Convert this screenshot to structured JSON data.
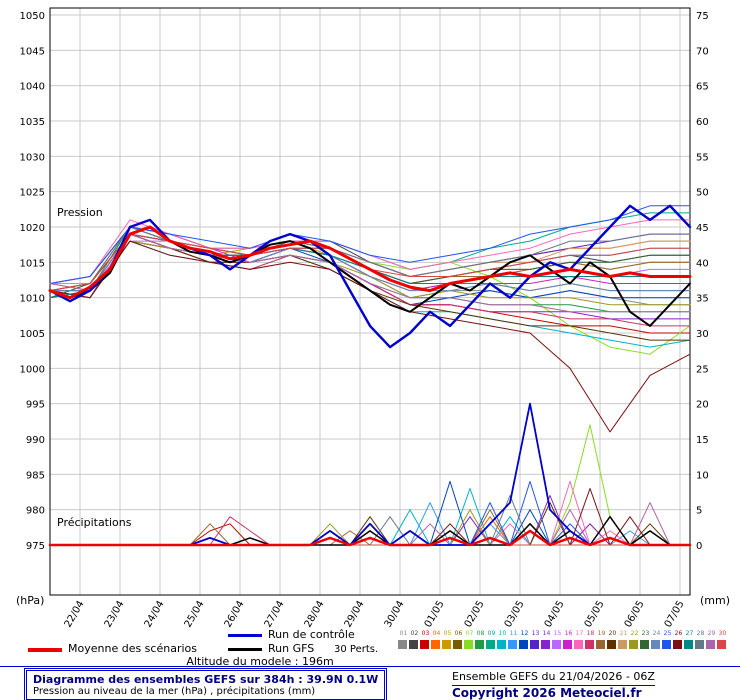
{
  "chart_data": {
    "type": "line",
    "title": "Diagramme des ensembles GEFS sur 384h : 39.9N 0.1W",
    "subtitle": "Pression au niveau de la mer (hPa) , précipitations (mm)",
    "run_info": "Ensemble GEFS du 21/04/2026 - 06Z",
    "copyright": "Copyright 2026 Meteociel.fr",
    "altitude_note": "Altitude du modele : 196m",
    "annotations": {
      "pressure_label": "Pression",
      "precip_label": "Précipitations"
    },
    "legend": {
      "mean_label": "Moyenne des scénarios",
      "control_label": "Run de contrôle",
      "gfs_label": "Run GFS",
      "perts_label": "30 Perts."
    },
    "y_left": {
      "unit": "(hPa)",
      "min": 975,
      "max": 1050,
      "ticks": [
        1050,
        1045,
        1040,
        1035,
        1030,
        1025,
        1020,
        1015,
        1010,
        1005,
        1000,
        995,
        990,
        985,
        980,
        975
      ]
    },
    "y_right": {
      "unit": "(mm)",
      "min": 0,
      "max": 75,
      "ticks": [
        75,
        70,
        65,
        60,
        55,
        50,
        45,
        40,
        35,
        30,
        25,
        20,
        15,
        10,
        5,
        0
      ]
    },
    "x_axis": {
      "total_hours": 384,
      "labels": [
        "22/04",
        "23/04",
        "24/04",
        "25/04",
        "26/04",
        "27/04",
        "28/04",
        "29/04",
        "30/04",
        "01/05",
        "02/05",
        "03/05",
        "04/05",
        "05/05",
        "06/05",
        "07/05"
      ],
      "hours": [
        18,
        42,
        66,
        90,
        114,
        138,
        162,
        186,
        210,
        234,
        258,
        282,
        306,
        330,
        354,
        378
      ]
    },
    "mean": {
      "color": "#ee0000",
      "pressure": [
        1011,
        1010,
        1011.5,
        1014,
        1019,
        1020,
        1018,
        1017,
        1016.5,
        1015.5,
        1016,
        1017,
        1017.5,
        1018,
        1017,
        1015.5,
        1014,
        1012.5,
        1011.5,
        1011,
        1012,
        1012.5,
        1013,
        1013.5,
        1013,
        1013.5,
        1014,
        1013.5,
        1013,
        1013.5,
        1013,
        1013,
        1013
      ],
      "precip": [
        [
          14,
          1
        ],
        [
          16,
          1
        ],
        [
          20,
          1
        ],
        [
          22,
          1
        ],
        [
          24,
          2
        ],
        [
          26,
          1
        ],
        [
          28,
          1
        ]
      ]
    },
    "control": {
      "color": "#0000cc",
      "pressure": [
        1011,
        1009.5,
        1011,
        1014,
        1020,
        1021,
        1018,
        1017,
        1016,
        1014,
        1016,
        1018,
        1019,
        1018,
        1016,
        1011,
        1006,
        1003,
        1005,
        1008,
        1006,
        1009,
        1012,
        1010,
        1013,
        1015,
        1014,
        1017,
        1020,
        1023,
        1021,
        1023,
        1020
      ],
      "precip": [
        [
          8,
          1
        ],
        [
          14,
          2
        ],
        [
          16,
          3
        ],
        [
          18,
          2
        ],
        [
          22,
          3
        ],
        [
          23,
          6
        ],
        [
          24,
          20
        ],
        [
          25,
          5
        ],
        [
          26,
          2
        ],
        [
          28,
          1
        ]
      ]
    },
    "gfs": {
      "color": "#000000",
      "pressure": [
        1011,
        1010,
        1011,
        1013.5,
        1019,
        1020,
        1018,
        1016.5,
        1016,
        1015,
        1016,
        1017.5,
        1018,
        1017,
        1015,
        1013,
        1011,
        1009,
        1008,
        1010,
        1012,
        1011,
        1013,
        1015,
        1016,
        1014,
        1012,
        1015,
        1013,
        1008,
        1006,
        1009,
        1012
      ],
      "precip": [
        [
          10,
          1
        ],
        [
          16,
          2
        ],
        [
          20,
          2
        ],
        [
          24,
          3
        ],
        [
          26,
          2
        ],
        [
          28,
          4
        ],
        [
          30,
          2
        ]
      ]
    },
    "members": [
      {
        "id": "01",
        "color": "#888888",
        "pressure": [
          1011,
          1012,
          1019,
          1017,
          1016,
          1015,
          1017,
          1016,
          1013,
          1010,
          1011,
          1011,
          1010,
          1011,
          1010,
          1009,
          1009
        ]
      },
      {
        "id": "02",
        "color": "#444444",
        "pressure": [
          1012,
          1013,
          1020,
          1018,
          1017,
          1016,
          1018,
          1018,
          1015,
          1013,
          1013,
          1014,
          1015,
          1016,
          1015,
          1016,
          1016
        ]
      },
      {
        "id": "03",
        "color": "#cc0000",
        "pressure": [
          1010,
          1011,
          1018,
          1017,
          1015,
          1015,
          1016,
          1015,
          1012,
          1009,
          1009,
          1008,
          1007,
          1006,
          1006,
          1005,
          1005
        ],
        "precip": [
          [
            8,
            2
          ],
          [
            9,
            3
          ],
          [
            20,
            2
          ]
        ]
      },
      {
        "id": "04",
        "color": "#ff6600",
        "pressure": [
          1011,
          1012,
          1020,
          1019,
          1017,
          1016,
          1018,
          1017,
          1015,
          1013,
          1014,
          1015,
          1016,
          1017,
          1017,
          1018,
          1018
        ],
        "precip": [
          [
            8,
            1
          ],
          [
            22,
            4
          ],
          [
            27,
            3
          ]
        ]
      },
      {
        "id": "05",
        "color": "#cc9900",
        "pressure": [
          1012,
          1011,
          1019,
          1018,
          1016,
          1017,
          1018,
          1016,
          1014,
          1012,
          1013,
          1014,
          1014,
          1015,
          1014,
          1015,
          1015
        ]
      },
      {
        "id": "06",
        "color": "#7a5c00",
        "pressure": [
          1011,
          1010,
          1018,
          1017,
          1016,
          1015,
          1017,
          1016,
          1013,
          1011,
          1012,
          1012,
          1011,
          1012,
          1011,
          1011,
          1011
        ]
      },
      {
        "id": "07",
        "color": "#88dd22",
        "pressure": [
          1010,
          1012,
          1019,
          1018,
          1017,
          1016,
          1018,
          1017,
          1015,
          1014,
          1015,
          1013,
          1010,
          1006,
          1003,
          1002,
          1006
        ],
        "precip": [
          [
            24,
            2
          ],
          [
            26,
            6
          ],
          [
            27,
            17
          ],
          [
            28,
            4
          ]
        ]
      },
      {
        "id": "08",
        "color": "#229944",
        "pressure": [
          1011,
          1011,
          1020,
          1018,
          1016,
          1015,
          1016,
          1015,
          1012,
          1010,
          1010,
          1009,
          1009,
          1009,
          1008,
          1008,
          1008
        ]
      },
      {
        "id": "09",
        "color": "#00aa88",
        "pressure": [
          1012,
          1013,
          1020,
          1019,
          1017,
          1017,
          1018,
          1018,
          1016,
          1014,
          1015,
          1017,
          1018,
          1020,
          1021,
          1022,
          1022
        ]
      },
      {
        "id": "10",
        "color": "#00b4c8",
        "pressure": [
          1011,
          1010,
          1018,
          1016,
          1015,
          1014,
          1016,
          1014,
          1011,
          1008,
          1008,
          1007,
          1006,
          1005,
          1004,
          1003,
          1004
        ],
        "precip": [
          [
            18,
            5
          ],
          [
            21,
            8
          ],
          [
            23,
            4
          ]
        ]
      },
      {
        "id": "11",
        "color": "#3399ff",
        "pressure": [
          1010,
          1011,
          1019,
          1018,
          1016,
          1016,
          1017,
          1017,
          1014,
          1012,
          1013,
          1014,
          1015,
          1016,
          1016,
          1017,
          1017
        ],
        "precip": [
          [
            19,
            6
          ],
          [
            22,
            3
          ],
          [
            29,
            2
          ]
        ]
      },
      {
        "id": "12",
        "color": "#0044bb",
        "pressure": [
          1011,
          1012,
          1019,
          1017,
          1016,
          1015,
          1017,
          1015,
          1012,
          1009,
          1010,
          1011,
          1010,
          1011,
          1010,
          1010,
          1010
        ],
        "precip": [
          [
            20,
            9
          ],
          [
            24,
            5
          ],
          [
            26,
            2
          ]
        ]
      },
      {
        "id": "13",
        "color": "#5522cc",
        "pressure": [
          1012,
          1012,
          1020,
          1019,
          1017,
          1016,
          1018,
          1017,
          1015,
          1013,
          1014,
          1015,
          1016,
          1017,
          1018,
          1019,
          1019
        ]
      },
      {
        "id": "14",
        "color": "#8822cc",
        "pressure": [
          1011,
          1010,
          1019,
          1017,
          1015,
          1015,
          1016,
          1015,
          1012,
          1009,
          1009,
          1008,
          1008,
          1008,
          1007,
          1007,
          1007
        ],
        "precip": [
          [
            21,
            4
          ],
          [
            25,
            7
          ],
          [
            27,
            3
          ]
        ]
      },
      {
        "id": "15",
        "color": "#bb66ff",
        "pressure": [
          1010,
          1011,
          1018,
          1018,
          1016,
          1016,
          1017,
          1016,
          1014,
          1012,
          1012,
          1013,
          1013,
          1014,
          1013,
          1014,
          1014
        ]
      },
      {
        "id": "16",
        "color": "#cc22cc",
        "pressure": [
          1011,
          1012,
          1019,
          1018,
          1017,
          1015,
          1017,
          1016,
          1013,
          1011,
          1012,
          1012,
          1012,
          1013,
          1012,
          1012,
          1012
        ]
      },
      {
        "id": "17",
        "color": "#ff66bb",
        "pressure": [
          1012,
          1013,
          1021,
          1019,
          1017,
          1017,
          1018,
          1018,
          1016,
          1014,
          1015,
          1016,
          1017,
          1019,
          1020,
          1021,
          1021
        ],
        "precip": [
          [
            23,
            3
          ],
          [
            26,
            9
          ],
          [
            28,
            2
          ]
        ]
      },
      {
        "id": "18",
        "color": "#cc3366",
        "pressure": [
          1011,
          1010,
          1018,
          1017,
          1015,
          1014,
          1016,
          1015,
          1012,
          1009,
          1009,
          1008,
          1008,
          1007,
          1007,
          1006,
          1006
        ],
        "precip": [
          [
            9,
            4
          ],
          [
            10,
            2
          ],
          [
            24,
            3
          ]
        ]
      },
      {
        "id": "19",
        "color": "#996633",
        "pressure": [
          1010,
          1011,
          1019,
          1018,
          1016,
          1016,
          1017,
          1016,
          1014,
          1012,
          1013,
          1013,
          1014,
          1015,
          1014,
          1015,
          1015
        ],
        "precip": [
          [
            8,
            3
          ],
          [
            15,
            2
          ],
          [
            22,
            5
          ]
        ]
      },
      {
        "id": "20",
        "color": "#5c3300",
        "pressure": [
          1011,
          1011,
          1019,
          1017,
          1015,
          1015,
          1016,
          1014,
          1011,
          1009,
          1008,
          1007,
          1006,
          1006,
          1005,
          1004,
          1004
        ],
        "precip": [
          [
            16,
            4
          ],
          [
            25,
            6
          ],
          [
            30,
            3
          ]
        ]
      },
      {
        "id": "21",
        "color": "#cc9966",
        "pressure": [
          1012,
          1012,
          1020,
          1018,
          1017,
          1016,
          1018,
          1017,
          1015,
          1013,
          1014,
          1015,
          1015,
          1017,
          1017,
          1018,
          1018
        ]
      },
      {
        "id": "22",
        "color": "#999922",
        "pressure": [
          1011,
          1010,
          1018,
          1017,
          1016,
          1015,
          1016,
          1015,
          1013,
          1010,
          1011,
          1010,
          1010,
          1010,
          1009,
          1009,
          1009
        ],
        "precip": [
          [
            14,
            3
          ],
          [
            21,
            5
          ]
        ]
      },
      {
        "id": "23",
        "color": "#336633",
        "pressure": [
          1010,
          1012,
          1019,
          1018,
          1016,
          1016,
          1017,
          1017,
          1014,
          1012,
          1013,
          1014,
          1014,
          1015,
          1015,
          1016,
          1016
        ]
      },
      {
        "id": "24",
        "color": "#6688bb",
        "pressure": [
          1011,
          1011,
          1019,
          1018,
          1016,
          1015,
          1017,
          1016,
          1013,
          1011,
          1011,
          1012,
          1011,
          1012,
          1011,
          1011,
          1011
        ]
      },
      {
        "id": "25",
        "color": "#2255ee",
        "pressure": [
          1012,
          1013,
          1020,
          1019,
          1018,
          1017,
          1019,
          1018,
          1016,
          1015,
          1016,
          1017,
          1019,
          1020,
          1021,
          1023,
          1023
        ],
        "precip": [
          [
            22,
            6
          ],
          [
            24,
            9
          ],
          [
            26,
            3
          ]
        ]
      },
      {
        "id": "26",
        "color": "#7a1010",
        "pressure": [
          1011,
          1010,
          1018,
          1016,
          1015,
          1014,
          1015,
          1014,
          1011,
          1008,
          1007,
          1006,
          1005,
          1000,
          991,
          999,
          1002
        ],
        "precip": [
          [
            20,
            3
          ],
          [
            27,
            8
          ],
          [
            29,
            4
          ]
        ]
      },
      {
        "id": "27",
        "color": "#008888",
        "pressure": [
          1010,
          1011,
          1019,
          1018,
          1016,
          1016,
          1017,
          1016,
          1014,
          1012,
          1012,
          1013,
          1013,
          1013,
          1013,
          1013,
          1013
        ]
      },
      {
        "id": "28",
        "color": "#667788",
        "pressure": [
          1011,
          1012,
          1020,
          1018,
          1017,
          1016,
          1018,
          1017,
          1015,
          1013,
          1014,
          1015,
          1016,
          1018,
          1018,
          1019,
          1019
        ],
        "precip": [
          [
            17,
            4
          ],
          [
            23,
            7
          ]
        ]
      },
      {
        "id": "29",
        "color": "#aa66aa",
        "pressure": [
          1012,
          1011,
          1019,
          1017,
          1016,
          1015,
          1016,
          1015,
          1012,
          1010,
          1010,
          1009,
          1009,
          1008,
          1008,
          1008,
          1008
        ],
        "precip": [
          [
            19,
            3
          ],
          [
            26,
            5
          ],
          [
            30,
            6
          ]
        ]
      },
      {
        "id": "30",
        "color": "#dd4444",
        "pressure": [
          1011,
          1012,
          1019,
          1018,
          1017,
          1016,
          1017,
          1017,
          1014,
          1013,
          1013,
          1014,
          1015,
          1016,
          1016,
          1017,
          1017
        ]
      }
    ]
  }
}
